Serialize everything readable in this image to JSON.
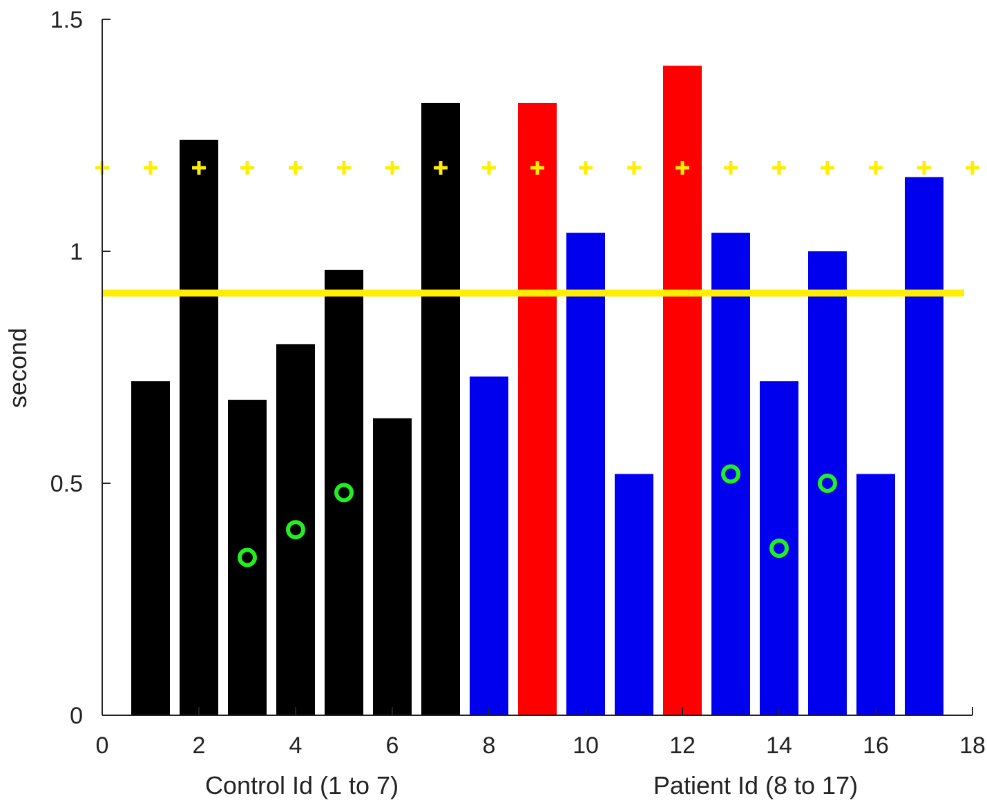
{
  "chart_data": {
    "type": "bar",
    "title": "",
    "ylabel": "second",
    "xlabels": [
      "Control Id (1 to 7)",
      "Patient Id (8 to 17)"
    ],
    "xlim": [
      0,
      18
    ],
    "ylim": [
      0,
      1.5
    ],
    "xticks": [
      0,
      2,
      4,
      6,
      8,
      10,
      12,
      14,
      16,
      18
    ],
    "yticks": [
      0,
      0.5,
      1,
      1.5
    ],
    "xtick_labels": [
      "0",
      "2",
      "4",
      "6",
      "8",
      "10",
      "12",
      "14",
      "16",
      "18"
    ],
    "ytick_labels": [
      "0",
      "0.5",
      "1",
      "1.5"
    ],
    "bars": [
      {
        "id": 1,
        "value": 0.72,
        "group": "control"
      },
      {
        "id": 2,
        "value": 1.24,
        "group": "control"
      },
      {
        "id": 3,
        "value": 0.68,
        "group": "control"
      },
      {
        "id": 4,
        "value": 0.8,
        "group": "control"
      },
      {
        "id": 5,
        "value": 0.96,
        "group": "control"
      },
      {
        "id": 6,
        "value": 0.64,
        "group": "control"
      },
      {
        "id": 7,
        "value": 1.32,
        "group": "control"
      },
      {
        "id": 8,
        "value": 0.73,
        "group": "patient"
      },
      {
        "id": 9,
        "value": 1.32,
        "group": "patient-highlight"
      },
      {
        "id": 10,
        "value": 1.04,
        "group": "patient"
      },
      {
        "id": 11,
        "value": 0.52,
        "group": "patient"
      },
      {
        "id": 12,
        "value": 1.4,
        "group": "patient-highlight"
      },
      {
        "id": 13,
        "value": 1.04,
        "group": "patient"
      },
      {
        "id": 14,
        "value": 0.72,
        "group": "patient"
      },
      {
        "id": 15,
        "value": 1.0,
        "group": "patient"
      },
      {
        "id": 16,
        "value": 0.52,
        "group": "patient"
      },
      {
        "id": 17,
        "value": 1.16,
        "group": "patient"
      }
    ],
    "threshold_line": {
      "value": 0.91,
      "color": "#ffee00"
    },
    "plus_markers": {
      "y": 1.18,
      "x": [
        0,
        1,
        2,
        3,
        4,
        5,
        6,
        7,
        8,
        9,
        10,
        11,
        12,
        13,
        14,
        15,
        16,
        17,
        18
      ],
      "color": "#ffee00"
    },
    "circle_markers": {
      "points": [
        [
          3,
          0.34
        ],
        [
          4,
          0.4
        ],
        [
          5,
          0.48
        ],
        [
          13,
          0.52
        ],
        [
          14,
          0.36
        ],
        [
          15,
          0.5
        ]
      ],
      "color": "#22ee22"
    },
    "colors": {
      "control": "#000000",
      "patient": "#0000ee",
      "patient-highlight": "#ff0000",
      "axis": "#222222"
    }
  }
}
